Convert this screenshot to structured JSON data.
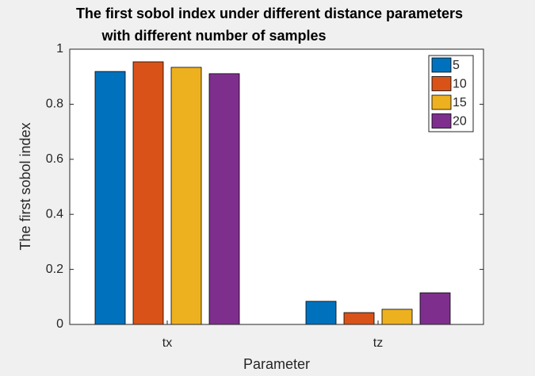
{
  "chart_data": {
    "type": "bar",
    "title": [
      "The first sobol index under different distance parameters",
      "with different number of samples"
    ],
    "xlabel": "Parameter",
    "ylabel": "The first sobol index",
    "categories": [
      "tx",
      "tz"
    ],
    "series": [
      {
        "name": "5",
        "color": "#0072BD",
        "values": [
          0.919,
          0.084
        ]
      },
      {
        "name": "10",
        "color": "#D95319",
        "values": [
          0.954,
          0.043
        ]
      },
      {
        "name": "15",
        "color": "#EDB120",
        "values": [
          0.934,
          0.055
        ]
      },
      {
        "name": "20",
        "color": "#7E2F8E",
        "values": [
          0.911,
          0.115
        ]
      }
    ],
    "ylim": [
      0,
      1
    ],
    "yticks": [
      0,
      0.2,
      0.4,
      0.6,
      0.8,
      1
    ],
    "grid": false,
    "legend": "northeast"
  }
}
